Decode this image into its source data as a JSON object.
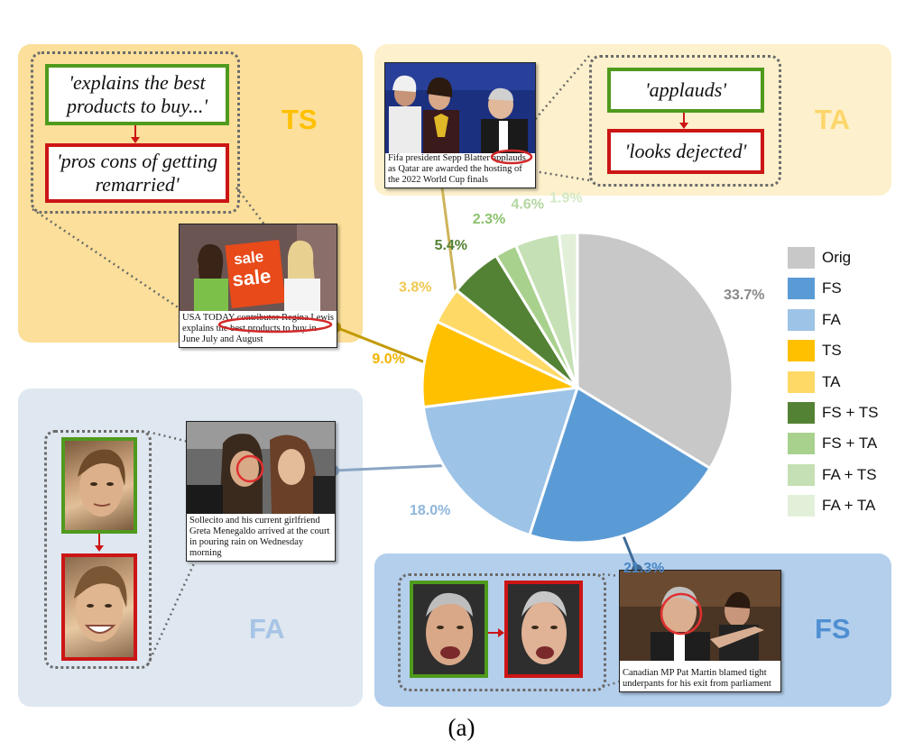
{
  "chart_data": {
    "type": "pie",
    "title": "",
    "unit": "%",
    "slices": [
      {
        "name": "Orig",
        "value": 33.7,
        "label": "33.7%",
        "color": "#c8c8c8",
        "label_color": "#888888"
      },
      {
        "name": "FS",
        "value": 21.3,
        "label": "21.3%",
        "color": "#5b9bd5",
        "label_color": "#4a86c5"
      },
      {
        "name": "FA",
        "value": 18.0,
        "label": "18.0%",
        "color": "#9dc3e6",
        "label_color": "#8fb6dc"
      },
      {
        "name": "TS",
        "value": 9.0,
        "label": "9.0%",
        "color": "#ffc000",
        "label_color": "#f0b400"
      },
      {
        "name": "TA",
        "value": 3.8,
        "label": "3.8%",
        "color": "#ffd966",
        "label_color": "#f0c850"
      },
      {
        "name": "FS + TS",
        "value": 5.4,
        "label": "5.4%",
        "color": "#548235",
        "label_color": "#548235"
      },
      {
        "name": "FS + TA",
        "value": 2.3,
        "label": "2.3%",
        "color": "#a9d18e",
        "label_color": "#8cc26e"
      },
      {
        "name": "FA + TS",
        "value": 4.6,
        "label": "4.6%",
        "color": "#c5e0b4",
        "label_color": "#b4d6a0"
      },
      {
        "name": "FA + TA",
        "value": 1.9,
        "label": "1.9%",
        "color": "#e2f0d9",
        "label_color": "#d2e8c4"
      }
    ],
    "legend_position": "right",
    "caption": "(a)"
  },
  "legend": [
    {
      "label": "Orig",
      "color": "#c8c8c8"
    },
    {
      "label": "FS",
      "color": "#5b9bd5"
    },
    {
      "label": "FA",
      "color": "#9dc3e6"
    },
    {
      "label": "TS",
      "color": "#ffc000"
    },
    {
      "label": "TA",
      "color": "#ffd966"
    },
    {
      "label": "FS + TS",
      "color": "#548235"
    },
    {
      "label": "FS + TA",
      "color": "#a9d18e"
    },
    {
      "label": "FA + TS",
      "color": "#c5e0b4"
    },
    {
      "label": "FA + TA",
      "color": "#e2f0d9"
    }
  ],
  "panels": {
    "ts": {
      "label": "TS",
      "original_text": "'explains the best products to buy...'",
      "manipulated_text": "'pros cons of getting remarried'",
      "caption": "USA TODAY contributor Regina Lewis explains the best products to buy in June July and August",
      "sign_text": "sale"
    },
    "ta": {
      "label": "TA",
      "original_text": "'applauds'",
      "manipulated_text": "'looks dejected'",
      "caption": "Fifa president Sepp Blatter applauds as Qatar are awarded the hosting of the 2022 World Cup finals"
    },
    "fa": {
      "label": "FA",
      "caption": "Sollecito and his current girlfriend Greta Menegaldo arrived at the court in pouring rain on Wednesday morning"
    },
    "fs": {
      "label": "FS",
      "caption": "Canadian MP Pat Martin blamed tight underpants for his exit from parliament"
    }
  },
  "colors": {
    "ts_panel": "#fbdf9a",
    "ta_panel": "#fdf0cc",
    "fa_panel": "#dfe7f0",
    "fs_panel": "#b4cfec",
    "ts_label": "#ffc000",
    "ta_label": "#fcd66a",
    "fa_label": "#a7c4e6",
    "fs_label": "#4f8fd2",
    "green_border": "#4f9a1d",
    "red_border": "#cc1515"
  },
  "figure_caption": "(a)"
}
